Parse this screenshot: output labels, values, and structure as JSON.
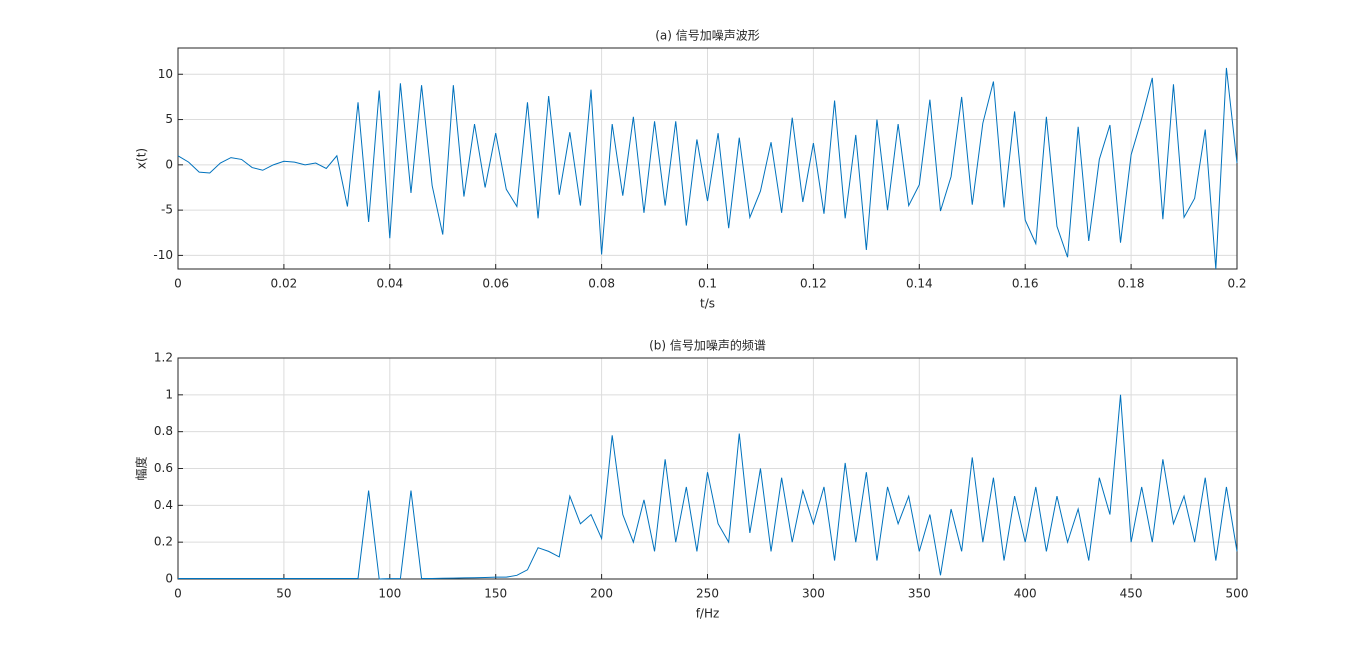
{
  "chart_data": [
    {
      "type": "line",
      "title": "(a) 信号加噪声波形",
      "x_label": "t/s",
      "y_label": "x(t)",
      "x": [
        0,
        0.002,
        0.004,
        0.006,
        0.008,
        0.01,
        0.012,
        0.014,
        0.016,
        0.018,
        0.02,
        0.022,
        0.024,
        0.026,
        0.028,
        0.03,
        0.032,
        0.034,
        0.036,
        0.038,
        0.04,
        0.042,
        0.044,
        0.046,
        0.048,
        0.05,
        0.052,
        0.054,
        0.056,
        0.058,
        0.06,
        0.062,
        0.064,
        0.066,
        0.068,
        0.07,
        0.072,
        0.074,
        0.076,
        0.078,
        0.08,
        0.082,
        0.084,
        0.086,
        0.088,
        0.09,
        0.092,
        0.094,
        0.096,
        0.098,
        0.1,
        0.102,
        0.104,
        0.106,
        0.108,
        0.11,
        0.112,
        0.114,
        0.116,
        0.118,
        0.12,
        0.122,
        0.124,
        0.126,
        0.128,
        0.13,
        0.132,
        0.134,
        0.136,
        0.138,
        0.14,
        0.142,
        0.144,
        0.146,
        0.148,
        0.15,
        0.152,
        0.154,
        0.156,
        0.158,
        0.16,
        0.162,
        0.164,
        0.166,
        0.168,
        0.17,
        0.172,
        0.174,
        0.176,
        0.178,
        0.18,
        0.182,
        0.184,
        0.186,
        0.188,
        0.19,
        0.192,
        0.194,
        0.196,
        0.198,
        0.2
      ],
      "series": [
        {
          "color": "#0072bd",
          "values": [
            1.0,
            0.3,
            -0.8,
            -0.9,
            0.2,
            0.8,
            0.6,
            -0.3,
            -0.6,
            0,
            0.4,
            0.3,
            0,
            0.2,
            -0.4,
            1.0,
            -4.6,
            6.9,
            -6.3,
            8.2,
            -8.1,
            9.0,
            -3.1,
            8.8,
            -2.3,
            -7.7,
            8.8,
            -3.5,
            4.5,
            -2.5,
            3.5,
            -2.7,
            -4.6,
            6.9,
            -5.9,
            7.6,
            -3.3,
            3.6,
            -4.5,
            8.3,
            -9.9,
            4.5,
            -3.4,
            5.3,
            -5.3,
            4.8,
            -4.5,
            4.8,
            -6.7,
            2.8,
            -4.0,
            3.5,
            -7.0,
            3.0,
            -5.8,
            -2.9,
            2.5,
            -5.3,
            5.2,
            -4.1,
            2.4,
            -5.4,
            7.1,
            -5.9,
            3.3,
            -9.4,
            5.0,
            -5.0,
            4.5,
            -4.5,
            -2.2,
            7.2,
            -5.1,
            -1.3,
            7.5,
            -4.4,
            4.6,
            9.2,
            -4.7,
            5.9,
            -6.1,
            -8.7,
            5.3,
            -6.8,
            -10.2,
            4.2,
            -8.4,
            0.6,
            4.4,
            -8.6,
            1.1,
            5.1,
            9.6,
            -6.0,
            8.9,
            -5.8,
            -3.7,
            3.9,
            -11.5,
            10.7,
            0.2
          ]
        }
      ],
      "xlim": [
        0,
        0.2
      ],
      "xticks": [
        0,
        0.02,
        0.04,
        0.06,
        0.08,
        0.1,
        0.12,
        0.14,
        0.16,
        0.18,
        0.2
      ],
      "ylim": [
        -11.5,
        12.9
      ],
      "yticks": [
        -10,
        -5,
        0,
        5,
        10
      ],
      "grid": true
    },
    {
      "type": "line",
      "title": "(b) 信号加噪声的频谱",
      "x_label": "f/Hz",
      "y_label": "幅度",
      "x": [
        0,
        5,
        10,
        15,
        20,
        25,
        30,
        35,
        40,
        45,
        50,
        55,
        60,
        65,
        70,
        75,
        80,
        85,
        90,
        95,
        100,
        105,
        110,
        115,
        120,
        125,
        130,
        135,
        140,
        145,
        150,
        155,
        160,
        165,
        170,
        175,
        180,
        185,
        190,
        195,
        200,
        205,
        210,
        215,
        220,
        225,
        230,
        235,
        240,
        245,
        250,
        255,
        260,
        265,
        270,
        275,
        280,
        285,
        290,
        295,
        300,
        305,
        310,
        315,
        320,
        325,
        330,
        335,
        340,
        345,
        350,
        355,
        360,
        365,
        370,
        375,
        380,
        385,
        390,
        395,
        400,
        405,
        410,
        415,
        420,
        425,
        430,
        435,
        440,
        445,
        450,
        455,
        460,
        465,
        470,
        475,
        480,
        485,
        490,
        495,
        500
      ],
      "series": [
        {
          "color": "#0072bd",
          "values": [
            0.003,
            0.003,
            0.003,
            0.003,
            0.003,
            0.003,
            0.003,
            0.003,
            0.003,
            0.003,
            0.003,
            0.003,
            0.003,
            0.003,
            0.003,
            0.003,
            0.003,
            0.003,
            0.48,
            0,
            0.002,
            0.002,
            0.48,
            0.003,
            0.003,
            0.004,
            0.005,
            0.006,
            0.007,
            0.008,
            0.01,
            0.01,
            0.02,
            0.05,
            0.17,
            0.15,
            0.12,
            0.45,
            0.3,
            0.35,
            0.22,
            0.78,
            0.35,
            0.2,
            0.43,
            0.15,
            0.65,
            0.2,
            0.5,
            0.15,
            0.58,
            0.3,
            0.2,
            0.79,
            0.25,
            0.6,
            0.15,
            0.55,
            0.2,
            0.48,
            0.3,
            0.5,
            0.1,
            0.63,
            0.2,
            0.58,
            0.1,
            0.5,
            0.3,
            0.45,
            0.15,
            0.35,
            0.02,
            0.38,
            0.15,
            0.66,
            0.2,
            0.55,
            0.1,
            0.45,
            0.2,
            0.5,
            0.15,
            0.45,
            0.2,
            0.38,
            0.1,
            0.55,
            0.35,
            1.0,
            0.2,
            0.5,
            0.2,
            0.65,
            0.3,
            0.45,
            0.2,
            0.55,
            0.1,
            0.5,
            0.15
          ]
        }
      ],
      "xlim": [
        0,
        500
      ],
      "xticks": [
        0,
        50,
        100,
        150,
        200,
        250,
        300,
        350,
        400,
        450,
        500
      ],
      "ylim": [
        0,
        1.2
      ],
      "yticks": [
        0,
        0.2,
        0.4,
        0.6,
        0.8,
        1,
        1.2
      ],
      "grid": true
    }
  ]
}
